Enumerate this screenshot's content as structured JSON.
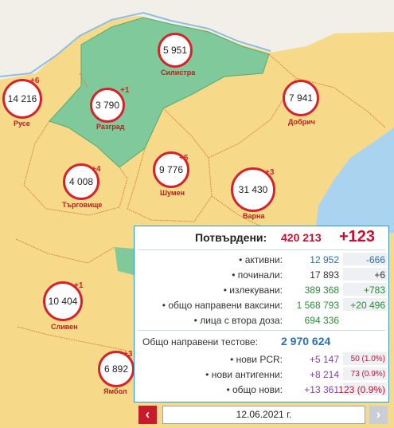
{
  "map": {
    "regions": [
      {
        "name": "Русе",
        "value": "14 216",
        "delta": "+6"
      },
      {
        "name": "Силистра",
        "value": "5 951",
        "delta": ""
      },
      {
        "name": "Разград",
        "value": "3 790",
        "delta": "+1"
      },
      {
        "name": "Добрич",
        "value": "7 941",
        "delta": ""
      },
      {
        "name": "Търговище",
        "value": "4 008",
        "delta": "+4"
      },
      {
        "name": "Шумен",
        "value": "9 776",
        "delta": "+5"
      },
      {
        "name": "Варна",
        "value": "31 430",
        "delta": "+3"
      },
      {
        "name": "Сливен",
        "value": "10 404",
        "delta": "+1"
      },
      {
        "name": "Ямбол",
        "value": "6 892",
        "delta": "+3"
      }
    ]
  },
  "panel": {
    "title": "Потвърдени:",
    "confirmed": "420 213",
    "confirmed_delta": "+123",
    "stats": [
      {
        "label": "• активни:",
        "value": "12 952",
        "delta": "-666",
        "value_color": "#2a6fb0",
        "delta_color": "#2a6fb0"
      },
      {
        "label": "• починали:",
        "value": "17 893",
        "delta": "+6",
        "value_color": "#333333",
        "delta_color": "#333333"
      },
      {
        "label": "• излекувани:",
        "value": "389 368",
        "delta": "+783",
        "value_color": "#2e8b3a",
        "delta_color": "#2e8b3a"
      },
      {
        "label": "• общо направени ваксини:",
        "value": "1 568 793",
        "delta": "+20 496",
        "value_color": "#2e8b3a",
        "delta_color": "#2e8b3a"
      },
      {
        "label": "• лица с втора доза:",
        "value": "694 336",
        "delta": "",
        "value_color": "#2e8b3a",
        "delta_color": "#2e8b3a"
      }
    ],
    "tests_label": "Общо направени тестове:",
    "tests_value": "2 970 624",
    "tests": [
      {
        "label": "• нови PCR:",
        "value": "+5 147",
        "delta": "50 (1.0%)"
      },
      {
        "label": "• нови антигенни:",
        "value": "+8 214",
        "delta": "73 (0.9%)"
      },
      {
        "label": "• общо нови:",
        "value": "+13 361",
        "delta": "123 (0.9%)"
      }
    ]
  },
  "nav": {
    "prev_icon": "‹",
    "next_icon": "›",
    "date": "12.06.2021 г."
  }
}
